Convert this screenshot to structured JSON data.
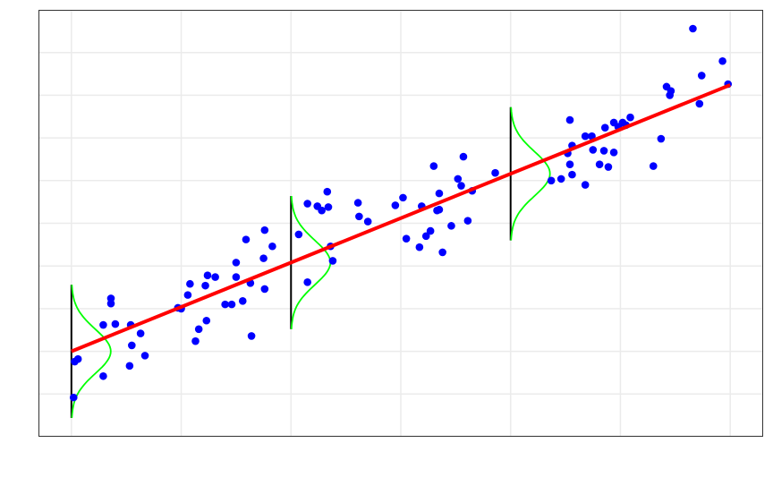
{
  "chart_data": {
    "type": "scatter",
    "x": [
      0.02,
      0.03,
      0.06,
      0.29,
      0.29,
      0.36,
      0.36,
      0.4,
      0.54,
      0.53,
      0.55,
      0.63,
      0.67,
      0.97,
      1.0,
      1.06,
      1.08,
      1.13,
      1.16,
      1.23,
      1.22,
      1.24,
      1.31,
      1.4,
      1.46,
      1.5,
      1.5,
      1.56,
      1.59,
      1.63,
      1.64,
      1.75,
      1.76,
      1.76,
      1.83,
      2.07,
      2.15,
      2.15,
      2.24,
      2.28,
      2.33,
      2.34,
      2.36,
      2.38,
      2.61,
      2.62,
      2.7,
      2.95,
      3.02,
      3.05,
      3.17,
      3.19,
      3.23,
      3.27,
      3.3,
      3.33,
      3.35,
      3.35,
      3.38,
      3.46,
      3.52,
      3.55,
      3.57,
      3.61,
      3.65,
      3.86,
      4.37,
      4.46,
      4.52,
      4.54,
      4.56,
      4.56,
      4.54,
      4.68,
      4.68,
      4.74,
      4.75,
      4.81,
      4.85,
      4.86,
      4.89,
      4.94,
      4.94,
      4.98,
      5.02,
      5.05,
      5.09,
      5.3,
      5.37,
      5.42,
      5.45,
      5.46,
      5.66,
      5.72,
      5.74,
      5.93,
      5.98
    ],
    "values": [
      0.46,
      0.88,
      0.91,
      0.71,
      1.31,
      1.62,
      1.56,
      1.32,
      1.31,
      0.83,
      1.07,
      1.21,
      0.95,
      1.51,
      1.5,
      1.66,
      1.79,
      1.12,
      1.26,
      1.36,
      1.77,
      1.89,
      1.87,
      1.55,
      1.55,
      1.87,
      2.04,
      1.59,
      2.31,
      1.8,
      1.18,
      2.09,
      1.73,
      2.42,
      2.23,
      2.37,
      1.81,
      2.73,
      2.7,
      2.65,
      2.87,
      2.69,
      2.23,
      2.06,
      2.74,
      2.58,
      2.52,
      2.71,
      2.8,
      2.32,
      2.22,
      2.7,
      2.35,
      2.41,
      3.17,
      2.65,
      2.66,
      2.85,
      2.16,
      2.47,
      3.02,
      2.94,
      3.28,
      2.53,
      2.88,
      3.09,
      3.0,
      3.02,
      3.32,
      3.19,
      3.41,
      3.07,
      3.71,
      3.52,
      2.95,
      3.52,
      3.36,
      3.19,
      3.35,
      3.62,
      3.16,
      3.33,
      3.68,
      3.63,
      3.68,
      3.65,
      3.74,
      3.17,
      3.49,
      4.1,
      4.0,
      4.05,
      4.78,
      3.9,
      4.23,
      4.4,
      4.13
    ],
    "color": "#0000ff",
    "fit": {
      "intercept": 1.0,
      "slope": 0.52,
      "color": "#ff0000"
    },
    "density_x": [
      0,
      2,
      4
    ],
    "density_sd": 0.26,
    "density_color": "#00ff00",
    "xlim": [
      -0.3,
      6.3
    ],
    "ylim": [
      0,
      5
    ],
    "xticks": [
      0,
      1,
      2,
      3,
      4,
      5,
      6
    ],
    "yticks": [
      0.5,
      1,
      1.5,
      2,
      2.5,
      3,
      3.5,
      4,
      4.5
    ],
    "grid": true
  }
}
